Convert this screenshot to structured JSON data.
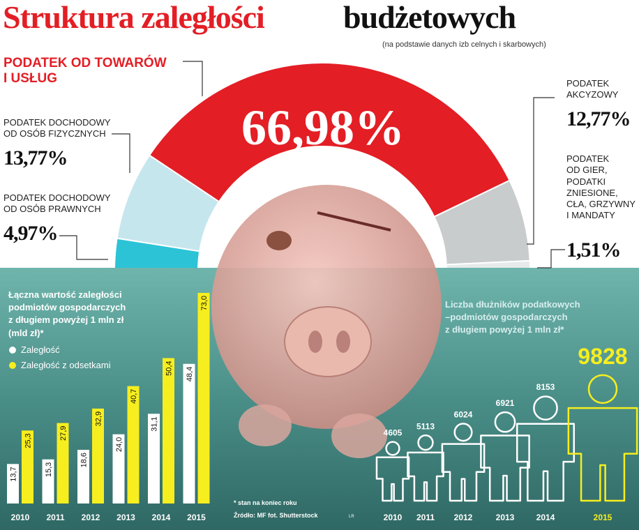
{
  "header": {
    "title": [
      "Struktura zaległości",
      "budżetowych"
    ],
    "subtitle": "(na podstawie danych izb celnych i skarbowych)"
  },
  "chart_data": [
    {
      "type": "pie",
      "categories": [
        "PODATEK DOCHODOWY\nOD OSÓB PRAWNYCH",
        "PODATEK DOCHODOWY\nOD OSÓB FIZYCZNYCH",
        "PODATEK OD TOWARÓW\nI USŁUG",
        "PODATEK\nAKCYZOWY",
        "PODATEK\nOD GIER,\nPODATKI\nZNIESIONE,\nCŁA, GRZYWNY\nI MANDATY"
      ],
      "values": [
        4.97,
        13.77,
        66.98,
        12.77,
        1.51
      ],
      "value_labels": [
        "4,97%",
        "13,77%",
        "66,98%",
        "12,77%",
        "1,51%"
      ],
      "colors": [
        "#2cc3d6",
        "#c6e6ee",
        "#e31e25",
        "#c8cccd",
        "#e6eaea"
      ]
    },
    {
      "type": "bar",
      "title": "Łączna wartość zaległości\npodmiotów gospodarczych\nz długiem powyżej 1 mln zł\n(mld zł)*",
      "categories": [
        "2010",
        "2011",
        "2012",
        "2013",
        "2014",
        "2015"
      ],
      "series": [
        {
          "name": "Zaległość",
          "color": "#ffffff",
          "values": [
            13.7,
            15.3,
            18.6,
            24.0,
            31.1,
            48.4
          ],
          "value_labels": [
            "13,7",
            "15,3",
            "18,6",
            "24,0",
            "31,1",
            "48,4"
          ]
        },
        {
          "name": "Zaległość z odsetkami",
          "color": "#f7ee1f",
          "values": [
            25.3,
            27.9,
            32.9,
            40.7,
            50.4,
            73.0
          ],
          "value_labels": [
            "25,3",
            "27,9",
            "32,9",
            "40,7",
            "50,4",
            "73,0"
          ]
        }
      ],
      "notes": [
        "* stan na koniec roku",
        "Źródło: MF   fot. Shutterstock"
      ],
      "credit": "LR"
    },
    {
      "type": "pictogram",
      "title": "Liczba dłużników podatkowych\n–podmiotów gospodarczych\nz długiem powyżej 1 mln zł*",
      "categories": [
        "2010",
        "2011",
        "2012",
        "2013",
        "2014",
        "2015"
      ],
      "values": [
        4605,
        5113,
        6024,
        6921,
        8153,
        9828
      ],
      "color": "#ffffff",
      "highlight_color": "#f7ee1f"
    }
  ]
}
